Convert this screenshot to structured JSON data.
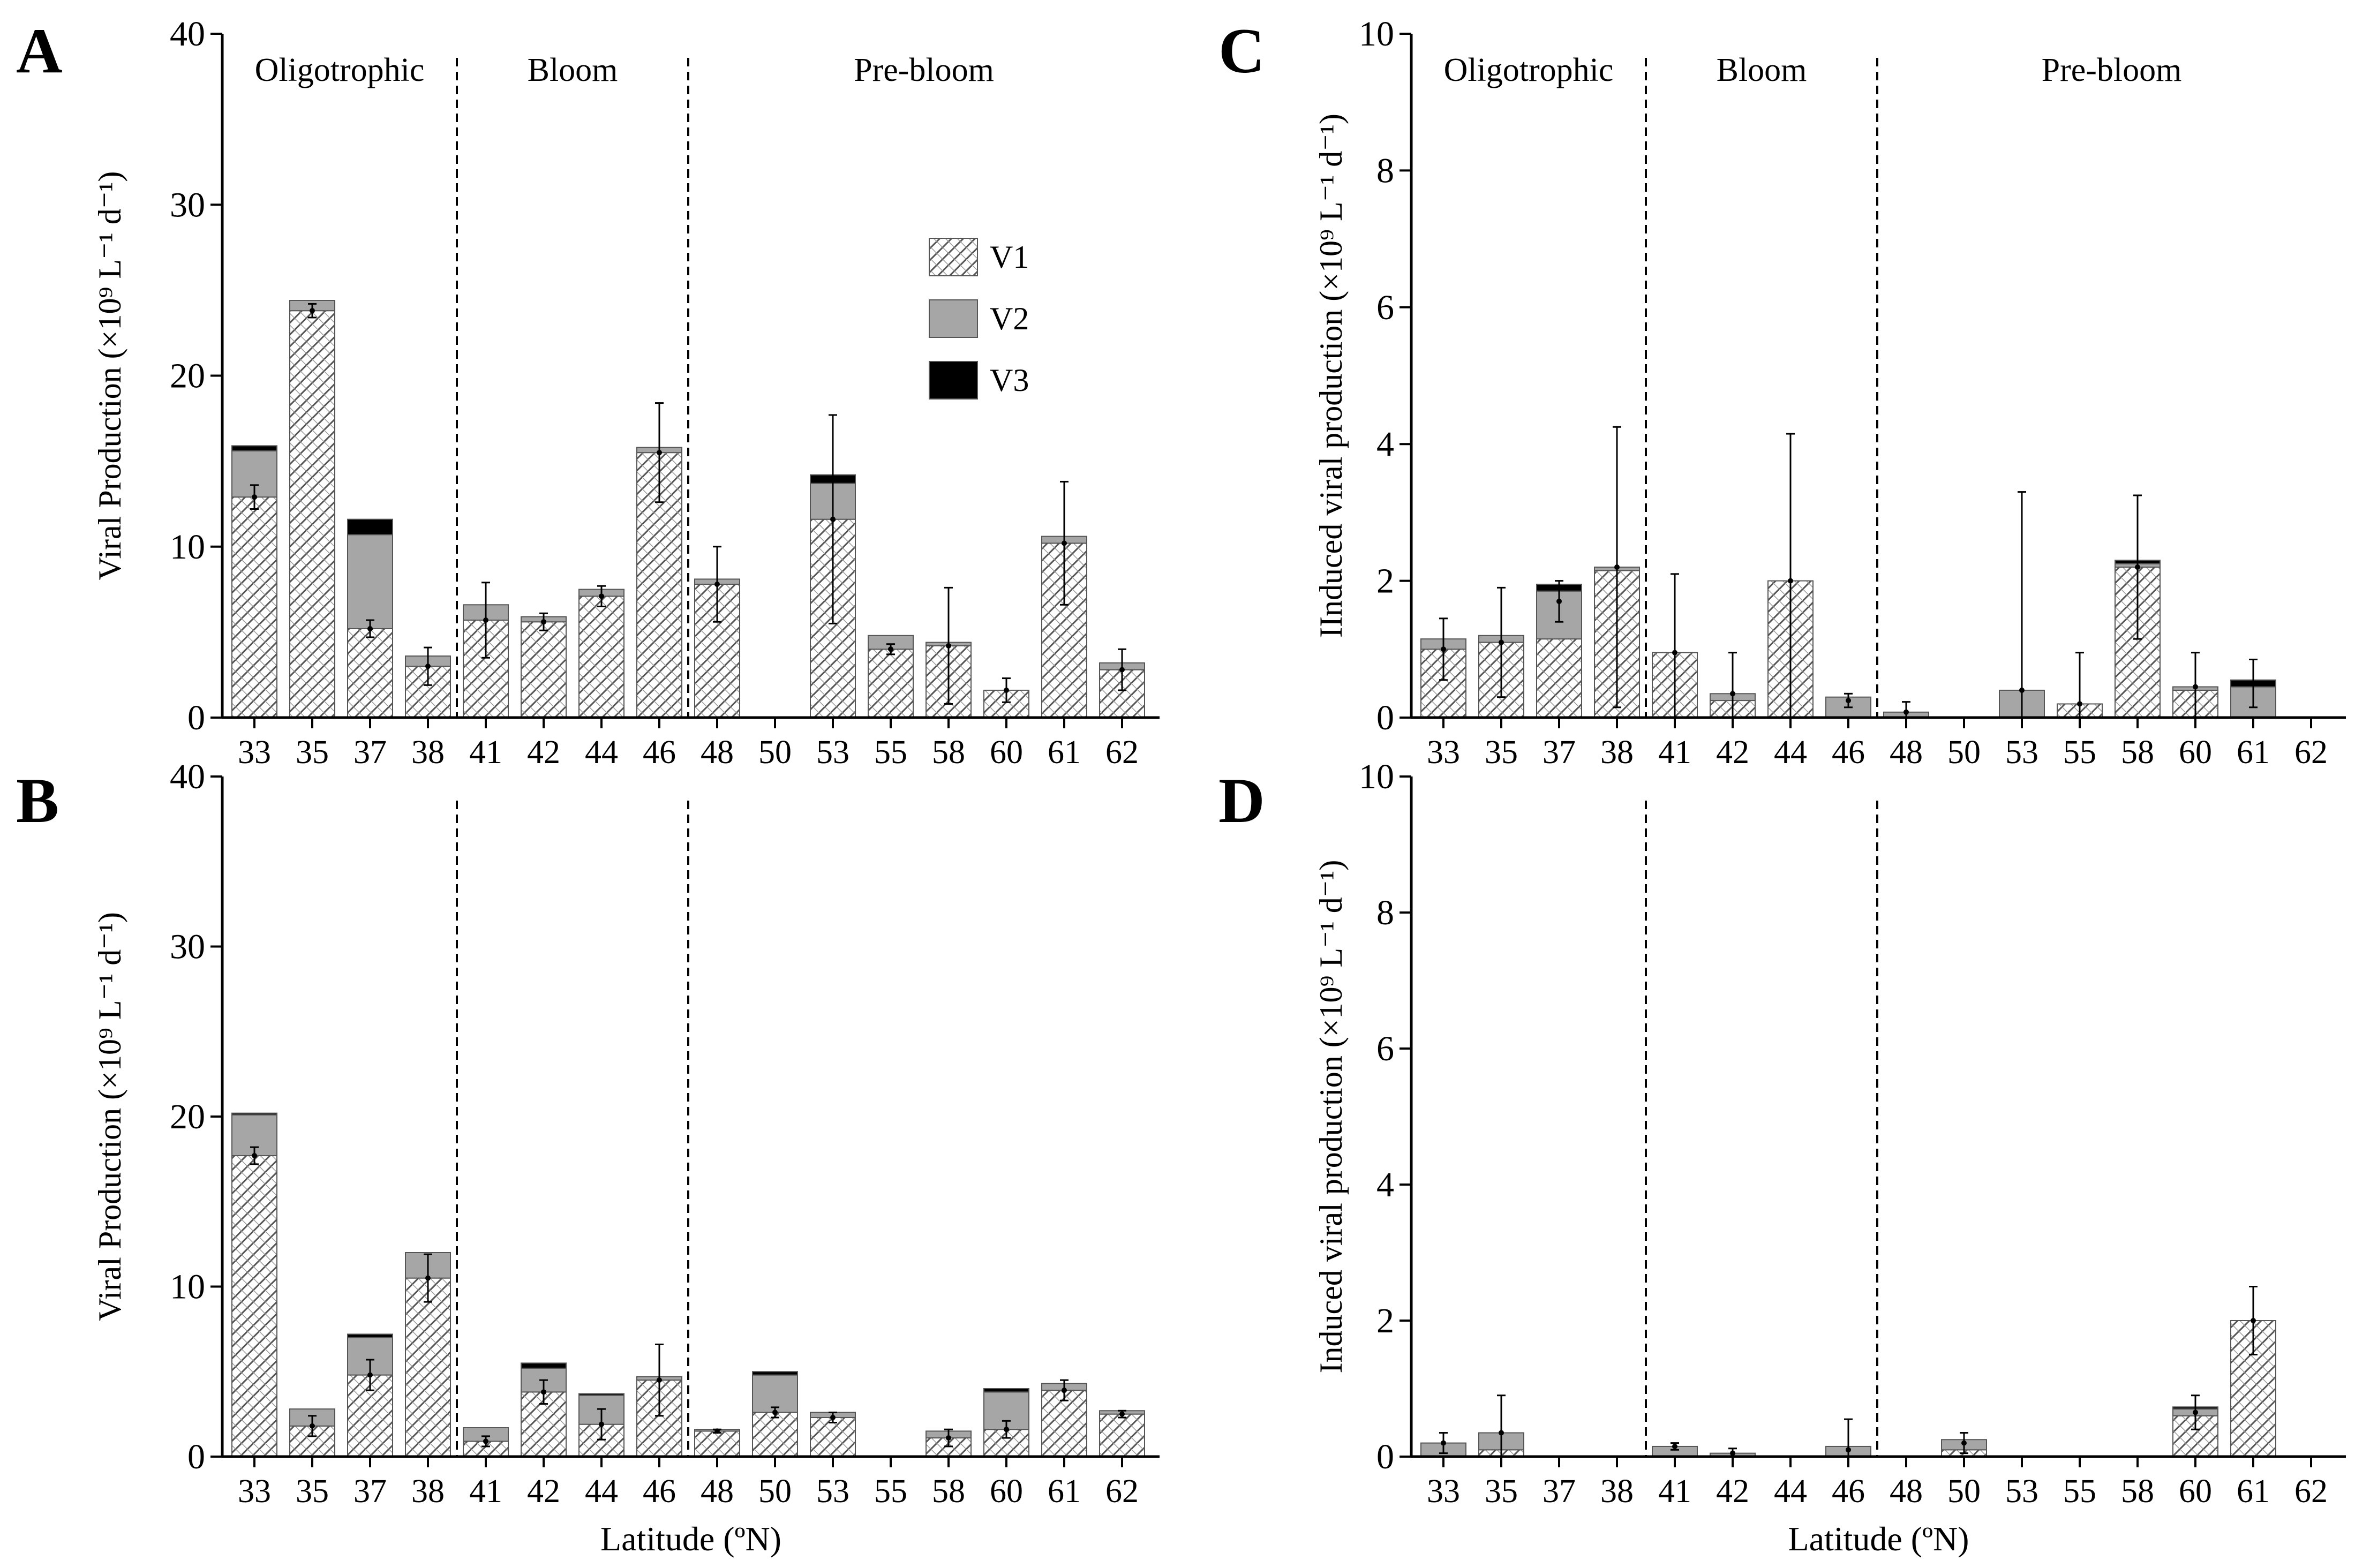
{
  "legend": [
    {
      "label": "V1",
      "style": "hatch"
    },
    {
      "label": "V2",
      "style": "grey"
    },
    {
      "label": "V3",
      "style": "black"
    }
  ],
  "colors": {
    "v2": "#a6a6a6",
    "v3": "#000000",
    "hatch_bg": "#ffffff",
    "hatch_line": "#555555",
    "axis": "#000000"
  },
  "chart_data": [
    {
      "panel": "A",
      "type": "bar",
      "stacked": true,
      "categories": [
        "33",
        "35",
        "37",
        "38",
        "41",
        "42",
        "44",
        "46",
        "48",
        "50",
        "53",
        "55",
        "58",
        "60",
        "61",
        "62"
      ],
      "series": [
        {
          "name": "V1",
          "values": [
            12.9,
            23.8,
            5.2,
            3.0,
            5.7,
            5.6,
            7.1,
            15.5,
            7.8,
            0,
            11.6,
            4.0,
            4.2,
            1.6,
            10.2,
            2.8
          ]
        },
        {
          "name": "V2",
          "values": [
            2.7,
            0.6,
            5.5,
            0.6,
            0.9,
            0.3,
            0.4,
            0.3,
            0.3,
            0,
            2.1,
            0.8,
            0.2,
            0,
            0.4,
            0.4
          ]
        },
        {
          "name": "V3",
          "values": [
            0.3,
            0,
            0.9,
            0,
            0,
            0,
            0,
            0,
            0,
            0,
            0.5,
            0,
            0,
            0,
            0,
            0
          ]
        }
      ],
      "errors": [
        0.7,
        0.4,
        0.5,
        1.1,
        2.2,
        0.5,
        0.6,
        2.9,
        2.2,
        0,
        6.1,
        0.3,
        3.4,
        0.7,
        3.6,
        1.2
      ],
      "error_centers": [
        12.9,
        23.8,
        5.2,
        3.0,
        5.7,
        5.6,
        7.1,
        15.5,
        7.8,
        0,
        11.6,
        4.0,
        4.2,
        1.6,
        10.2,
        2.8
      ],
      "ylabel": "Viral Production (×10⁹ L⁻¹ d⁻¹)",
      "xlabel": "",
      "yticks": [
        "0",
        "10",
        "20",
        "30",
        "40"
      ],
      "ylim": [
        0,
        40
      ],
      "region_labels": [
        "Oligotrophic",
        "Bloom",
        "Pre-bloom"
      ],
      "dividers_after": [
        "38",
        "46"
      ]
    },
    {
      "panel": "B",
      "type": "bar",
      "stacked": true,
      "categories": [
        "33",
        "35",
        "37",
        "38",
        "41",
        "42",
        "44",
        "46",
        "48",
        "50",
        "53",
        "55",
        "58",
        "60",
        "61",
        "62"
      ],
      "series": [
        {
          "name": "V1",
          "values": [
            17.7,
            1.8,
            4.8,
            10.5,
            0.9,
            3.8,
            1.9,
            4.5,
            1.5,
            2.6,
            2.3,
            0,
            1.1,
            1.6,
            3.9,
            2.5
          ]
        },
        {
          "name": "V2",
          "values": [
            2.4,
            1.0,
            2.2,
            1.5,
            0.8,
            1.4,
            1.7,
            0.2,
            0.1,
            2.2,
            0.3,
            0,
            0.4,
            2.2,
            0.4,
            0.2
          ]
        },
        {
          "name": "V3",
          "values": [
            0.1,
            0,
            0.2,
            0,
            0,
            0.3,
            0.1,
            0,
            0,
            0.2,
            0,
            0,
            0,
            0.2,
            0,
            0
          ]
        }
      ],
      "errors": [
        0.5,
        0.6,
        0.9,
        1.4,
        0.3,
        0.7,
        0.9,
        2.1,
        0.1,
        0.3,
        0.3,
        0,
        0.5,
        0.5,
        0.6,
        0.2
      ],
      "error_centers": [
        17.7,
        1.8,
        4.8,
        10.5,
        0.9,
        3.8,
        1.9,
        4.5,
        1.5,
        2.6,
        2.3,
        0,
        1.1,
        1.6,
        3.9,
        2.5
      ],
      "ylabel": "Viral Production (×10⁹ L⁻¹ d⁻¹)",
      "xlabel": "Latitude (ºN)",
      "yticks": [
        "0",
        "10",
        "20",
        "30",
        "40"
      ],
      "ylim": [
        0,
        40
      ],
      "region_labels": [],
      "dividers_after": [
        "38",
        "46"
      ]
    },
    {
      "panel": "C",
      "type": "bar",
      "stacked": true,
      "categories": [
        "33",
        "35",
        "37",
        "38",
        "41",
        "42",
        "44",
        "46",
        "48",
        "50",
        "53",
        "55",
        "58",
        "60",
        "61",
        "62"
      ],
      "series": [
        {
          "name": "V1",
          "values": [
            1.0,
            1.1,
            1.15,
            2.15,
            0.95,
            0.25,
            2.0,
            0,
            0,
            0,
            0,
            0.2,
            2.2,
            0.4,
            0,
            0
          ]
        },
        {
          "name": "V2",
          "values": [
            0.15,
            0.1,
            0.7,
            0.05,
            0,
            0.1,
            0,
            0.3,
            0.08,
            0,
            0.4,
            0,
            0.05,
            0.05,
            0.45,
            0
          ]
        },
        {
          "name": "V3",
          "values": [
            0,
            0,
            0.1,
            0,
            0,
            0,
            0,
            0,
            0,
            0,
            0,
            0,
            0.05,
            0,
            0.1,
            0
          ]
        }
      ],
      "errors": [
        0.45,
        0.8,
        0.3,
        2.05,
        1.15,
        0.6,
        2.15,
        0.1,
        0.15,
        0,
        2.9,
        0.75,
        1.05,
        0.5,
        0.35,
        0
      ],
      "error_centers": [
        1.0,
        1.1,
        1.7,
        2.2,
        0.95,
        0.35,
        2.0,
        0.25,
        0.08,
        0,
        0.4,
        0.2,
        2.2,
        0.45,
        0.5,
        0
      ],
      "ylabel": "IInduced viral production (×10⁹ L⁻¹ d⁻¹)",
      "xlabel": "",
      "yticks": [
        "0",
        "2",
        "4",
        "6",
        "8",
        "10"
      ],
      "ylim": [
        0,
        10
      ],
      "region_labels": [
        "Oligotrophic",
        "Bloom",
        "Pre-bloom"
      ],
      "dividers_after": [
        "38",
        "46"
      ]
    },
    {
      "panel": "D",
      "type": "bar",
      "stacked": true,
      "categories": [
        "33",
        "35",
        "37",
        "38",
        "41",
        "42",
        "44",
        "46",
        "48",
        "50",
        "53",
        "55",
        "58",
        "60",
        "61",
        "62"
      ],
      "series": [
        {
          "name": "V1",
          "values": [
            0,
            0.1,
            0,
            0,
            0,
            0,
            0,
            0,
            0,
            0.1,
            0,
            0,
            0,
            0.6,
            2.0,
            0
          ]
        },
        {
          "name": "V2",
          "values": [
            0.2,
            0.25,
            0,
            0,
            0.15,
            0.05,
            0,
            0.15,
            0,
            0.15,
            0,
            0,
            0,
            0.1,
            0,
            0
          ]
        },
        {
          "name": "V3",
          "values": [
            0,
            0,
            0,
            0,
            0,
            0,
            0,
            0,
            0,
            0,
            0,
            0,
            0,
            0.03,
            0,
            0
          ]
        }
      ],
      "errors": [
        0.15,
        0.55,
        0,
        0,
        0.05,
        0.07,
        0,
        0.45,
        0,
        0.15,
        0,
        0,
        0,
        0.25,
        0.5,
        0
      ],
      "error_centers": [
        0.2,
        0.35,
        0,
        0,
        0.15,
        0.05,
        0,
        0.1,
        0,
        0.2,
        0,
        0,
        0,
        0.65,
        2.0,
        0
      ],
      "ylabel": "Induced viral production (×10⁹ L⁻¹ d⁻¹)",
      "xlabel": "Latitude (ºN)",
      "yticks": [
        "0",
        "2",
        "4",
        "6",
        "8",
        "10"
      ],
      "ylim": [
        0,
        10
      ],
      "region_labels": [],
      "dividers_after": [
        "38",
        "46"
      ]
    }
  ]
}
